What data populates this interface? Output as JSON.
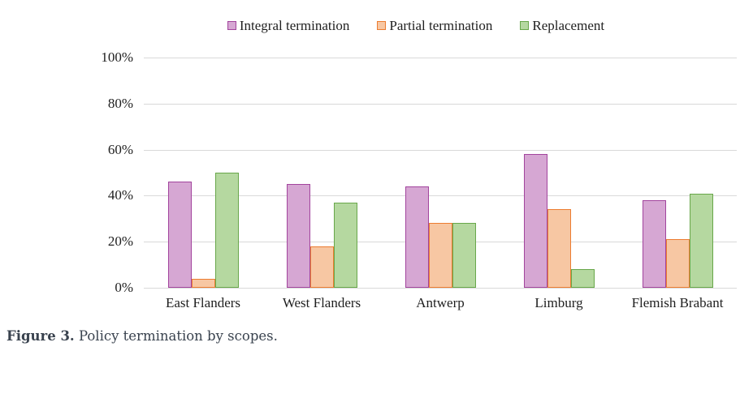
{
  "figure": {
    "caption_label": "Figure 3.",
    "caption_text": "Policy termination by scopes."
  },
  "chart_data": {
    "type": "bar",
    "title": "",
    "xlabel": "",
    "ylabel": "",
    "categories": [
      "East Flanders",
      "West Flanders",
      "Antwerp",
      "Limburg",
      "Flemish Brabant"
    ],
    "series": [
      {
        "name": "Integral termination",
        "values": [
          46,
          45,
          44,
          58,
          38
        ],
        "fill": "#d6a7d3",
        "stroke": "#a2449d"
      },
      {
        "name": "Partial termination",
        "values": [
          4,
          18,
          28,
          34,
          21
        ],
        "fill": "#f7c7a3",
        "stroke": "#ec7c30"
      },
      {
        "name": "Replacement",
        "values": [
          50,
          37,
          28,
          8,
          41
        ],
        "fill": "#b5d8a0",
        "stroke": "#68a74a"
      }
    ],
    "ylim": [
      0,
      100
    ],
    "yticks": [
      "0%",
      "20%",
      "40%",
      "60%",
      "80%",
      "100%"
    ],
    "grid": true,
    "gridline_color": "#d9d9d9",
    "legend_position": "top",
    "text_color": "#1f1f1f"
  }
}
